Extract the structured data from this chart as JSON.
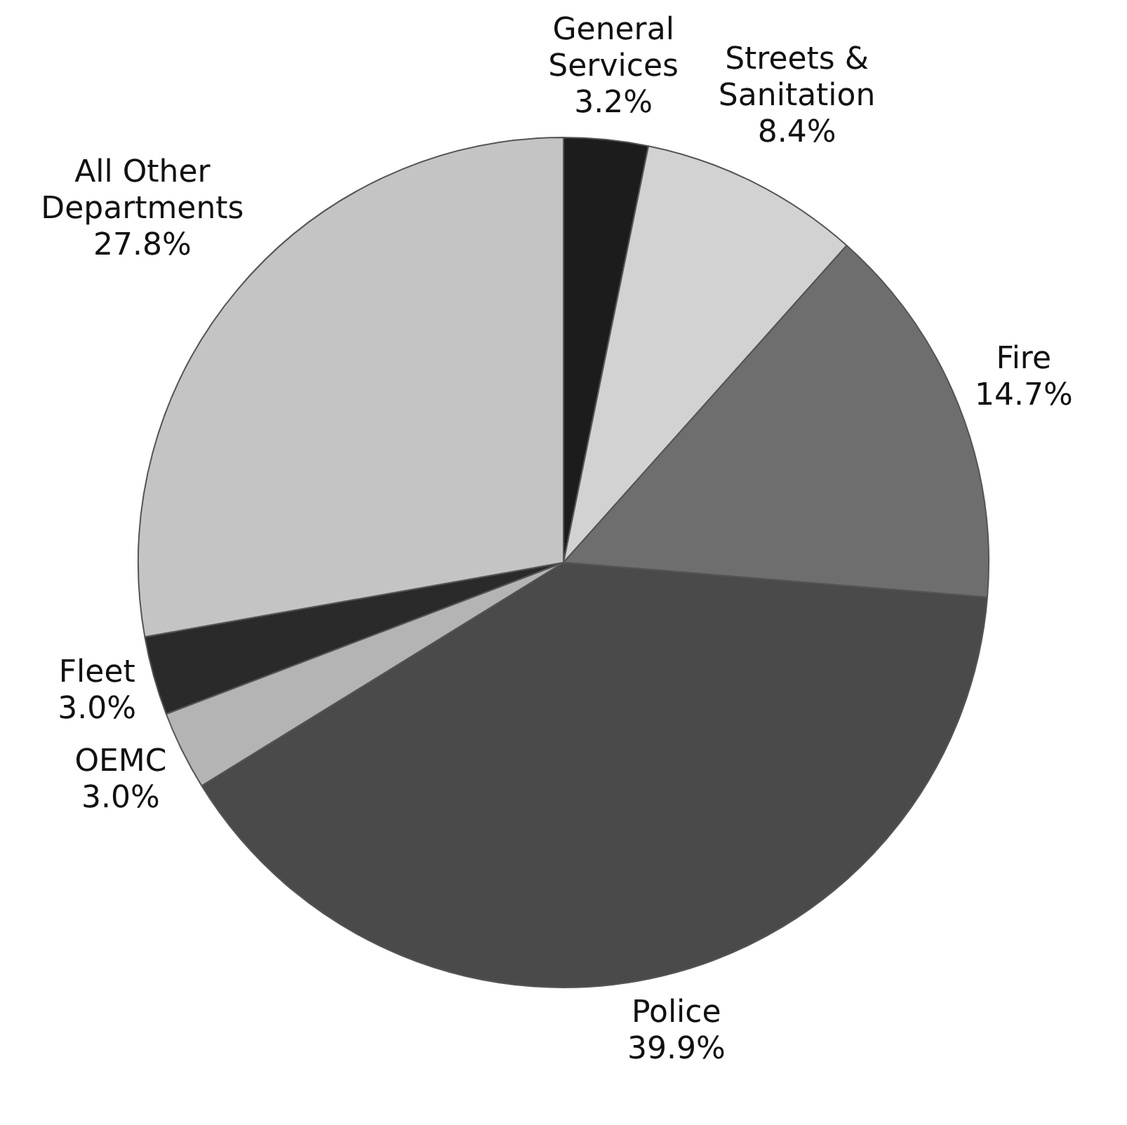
{
  "chart_data": {
    "type": "pie",
    "categories": [
      "General Services",
      "Streets & Sanitation",
      "Fire",
      "Police",
      "OEMC",
      "Fleet",
      "All Other Departments"
    ],
    "values": [
      3.2,
      8.4,
      14.7,
      39.9,
      3.0,
      3.0,
      27.8
    ],
    "value_labels": [
      "3.2%",
      "8.4%",
      "14.7%",
      "39.9%",
      "3.0%",
      "3.0%",
      "27.8%"
    ],
    "colors": [
      "#1c1c1c",
      "#d2d2d2",
      "#6e6e6e",
      "#4a4a4a",
      "#b4b4b4",
      "#2a2a2a",
      "#c4c4c4"
    ],
    "legend": false
  }
}
